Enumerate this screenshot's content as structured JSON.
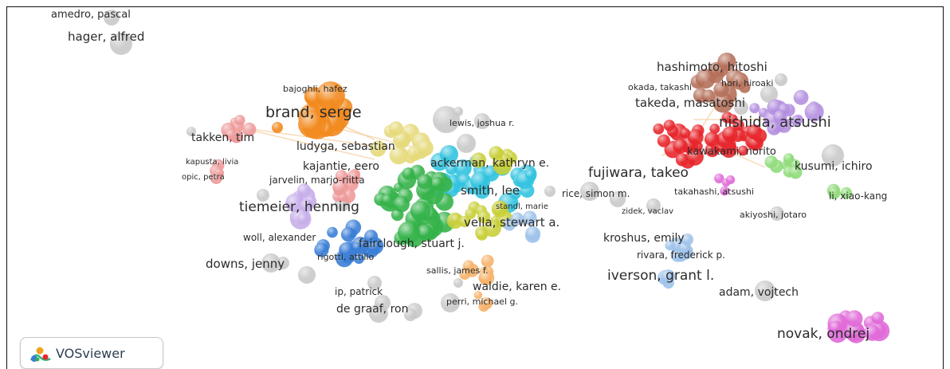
{
  "app": {
    "logo_text": "VOSviewer"
  },
  "colors": {
    "gray": "#c9c9c9",
    "orange": "#f28a1e",
    "red": "#e7262b",
    "purple": "#b48fe0",
    "brown": "#b5705a",
    "green": "#35b34a",
    "cyan": "#31c3df",
    "yellow": "#c9cf3a",
    "blue": "#3b7ed6",
    "pink": "#e06ad8",
    "lightgreen": "#8fdc7a",
    "lightblue": "#9ec3ea",
    "peach": "#f6b36a",
    "salmon": "#ee9a9a",
    "lavender": "#c7aeea",
    "sand": "#e6d97a"
  },
  "labels": [
    {
      "text": "amedro, pascal"
    },
    {
      "text": "hager, alfred"
    },
    {
      "text": "bajoghli, hafez"
    },
    {
      "text": "brand, serge"
    },
    {
      "text": "lewis, joshua r."
    },
    {
      "text": "takken, tim"
    },
    {
      "text": "ludyga, sebastian"
    },
    {
      "text": "kapusta, livia"
    },
    {
      "text": "kajantie, eero"
    },
    {
      "text": "ackerman, kathryn e."
    },
    {
      "text": "opic, petra"
    },
    {
      "text": "jarvelin, marjo-riitta"
    },
    {
      "text": "smith, lee"
    },
    {
      "text": "standl, marie"
    },
    {
      "text": "tiemeier, henning"
    },
    {
      "text": "vella, stewart a."
    },
    {
      "text": "woll, alexander"
    },
    {
      "text": "fairclough, stuart j."
    },
    {
      "text": "rigotti, attilio"
    },
    {
      "text": "downs, jenny"
    },
    {
      "text": "sallis, james f."
    },
    {
      "text": "ip, patrick"
    },
    {
      "text": "waldie, karen e."
    },
    {
      "text": "perri, michael g."
    },
    {
      "text": "de graaf, ron"
    },
    {
      "text": "rice, simon m."
    },
    {
      "text": "hashimoto, hitoshi"
    },
    {
      "text": "okada, takashi"
    },
    {
      "text": "hori, hiroaki"
    },
    {
      "text": "takeda, masatoshi"
    },
    {
      "text": "nishida, atsushi"
    },
    {
      "text": "kawakami, norito"
    },
    {
      "text": "fujiwara, takeo"
    },
    {
      "text": "kusumi, ichiro"
    },
    {
      "text": "takahashi, atsushi"
    },
    {
      "text": "li, xiao-kang"
    },
    {
      "text": "zidek, vaclav"
    },
    {
      "text": "akiyoshi, jotaro"
    },
    {
      "text": "kroshus, emily"
    },
    {
      "text": "rivara, frederick p."
    },
    {
      "text": "iverson, grant l."
    },
    {
      "text": "adam, vojtech"
    },
    {
      "text": "novak, ondrej"
    }
  ]
}
